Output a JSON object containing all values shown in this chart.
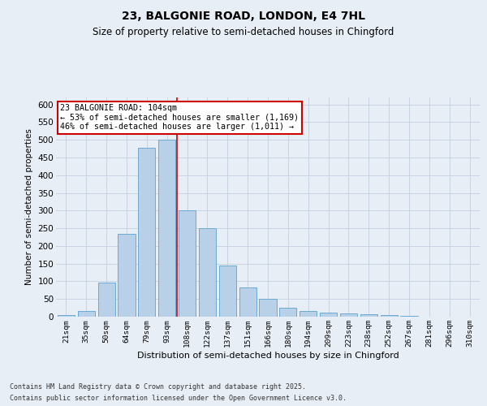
{
  "title1": "23, BALGONIE ROAD, LONDON, E4 7HL",
  "title2": "Size of property relative to semi-detached houses in Chingford",
  "xlabel": "Distribution of semi-detached houses by size in Chingford",
  "ylabel": "Number of semi-detached properties",
  "categories": [
    "21sqm",
    "35sqm",
    "50sqm",
    "64sqm",
    "79sqm",
    "93sqm",
    "108sqm",
    "122sqm",
    "137sqm",
    "151sqm",
    "166sqm",
    "180sqm",
    "194sqm",
    "209sqm",
    "223sqm",
    "238sqm",
    "252sqm",
    "267sqm",
    "281sqm",
    "296sqm",
    "310sqm"
  ],
  "values": [
    5,
    15,
    97,
    235,
    478,
    500,
    300,
    250,
    145,
    82,
    50,
    25,
    17,
    12,
    9,
    7,
    4,
    2,
    1,
    1,
    0
  ],
  "bar_color": "#b8d0e8",
  "bar_edge_color": "#6aaad4",
  "grid_color": "#c8d4e4",
  "background_color": "#e8eef6",
  "vline_color": "#cc0000",
  "vline_x": 5.5,
  "annotation_text": "23 BALGONIE ROAD: 104sqm\n← 53% of semi-detached houses are smaller (1,169)\n46% of semi-detached houses are larger (1,011) →",
  "annotation_box_facecolor": "#ffffff",
  "annotation_box_edgecolor": "#cc0000",
  "footer1": "Contains HM Land Registry data © Crown copyright and database right 2025.",
  "footer2": "Contains public sector information licensed under the Open Government Licence v3.0.",
  "ylim": [
    0,
    620
  ],
  "yticks": [
    0,
    50,
    100,
    150,
    200,
    250,
    300,
    350,
    400,
    450,
    500,
    550,
    600
  ],
  "title1_fontsize": 10,
  "title2_fontsize": 8.5
}
